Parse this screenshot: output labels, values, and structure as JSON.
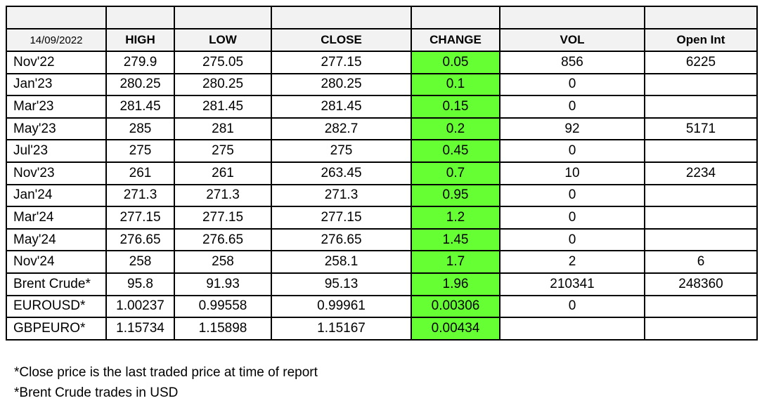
{
  "header": {
    "date": "14/09/2022",
    "columns": [
      "HIGH",
      "LOW",
      "CLOSE",
      "CHANGE",
      "VOL",
      "Open Int"
    ]
  },
  "rows": [
    {
      "month": "Nov'22",
      "high": "279.9",
      "low": "275.05",
      "close": "277.15",
      "change": "0.05",
      "vol": "856",
      "oi": "6225"
    },
    {
      "month": "Jan'23",
      "high": "280.25",
      "low": "280.25",
      "close": "280.25",
      "change": "0.1",
      "vol": "0",
      "oi": ""
    },
    {
      "month": "Mar'23",
      "high": "281.45",
      "low": "281.45",
      "close": "281.45",
      "change": "0.15",
      "vol": "0",
      "oi": ""
    },
    {
      "month": "May'23",
      "high": "285",
      "low": "281",
      "close": "282.7",
      "change": "0.2",
      "vol": "92",
      "oi": "5171"
    },
    {
      "month": "Jul'23",
      "high": "275",
      "low": "275",
      "close": "275",
      "change": "0.45",
      "vol": "0",
      "oi": ""
    },
    {
      "month": "Nov'23",
      "high": "261",
      "low": "261",
      "close": "263.45",
      "change": "0.7",
      "vol": "10",
      "oi": "2234"
    },
    {
      "month": "Jan'24",
      "high": "271.3",
      "low": "271.3",
      "close": "271.3",
      "change": "0.95",
      "vol": "0",
      "oi": ""
    },
    {
      "month": "Mar'24",
      "high": "277.15",
      "low": "277.15",
      "close": "277.15",
      "change": "1.2",
      "vol": "0",
      "oi": ""
    },
    {
      "month": "May'24",
      "high": "276.65",
      "low": "276.65",
      "close": "276.65",
      "change": "1.45",
      "vol": "0",
      "oi": ""
    },
    {
      "month": "Nov'24",
      "high": "258",
      "low": "258",
      "close": "258.1",
      "change": "1.7",
      "vol": "2",
      "oi": "6"
    },
    {
      "month": "Brent Crude*",
      "high": "95.8",
      "low": "91.93",
      "close": "95.13",
      "change": "1.96",
      "vol": "210341",
      "oi": "248360"
    },
    {
      "month": "EUROUSD*",
      "high": "1.00237",
      "low": "0.99558",
      "close": "0.99961",
      "change": "0.00306",
      "vol": "0",
      "oi": ""
    },
    {
      "month": "GBPEURO*",
      "high": "1.15734",
      "low": "1.15898",
      "close": "1.15167",
      "change": "0.00434",
      "vol": "",
      "oi": ""
    }
  ],
  "notes": [
    "*Close price is the last traded price at time of report",
    "*Brent Crude trades in USD"
  ],
  "colors": {
    "change_highlight": "#66ff33",
    "header_background": "#f2f2f2",
    "border": "#000000"
  }
}
